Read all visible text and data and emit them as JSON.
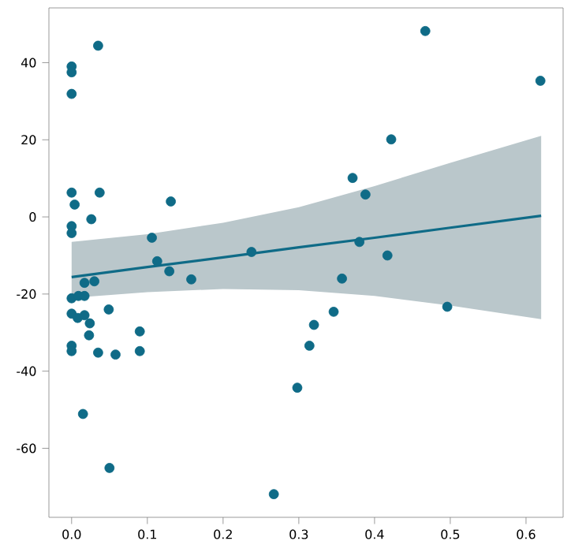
{
  "chart_data": {
    "type": "scatter",
    "marker": "circle",
    "xlim": [
      -0.03,
      0.649
    ],
    "ylim": [
      -77.9,
      54.2
    ],
    "xticks": [
      {
        "value": 0,
        "label": "0.0"
      },
      {
        "value": 0.1,
        "label": "0.1"
      },
      {
        "value": 0.2,
        "label": "0.2"
      },
      {
        "value": 0.3,
        "label": "0.3"
      },
      {
        "value": 0.4,
        "label": "0.4"
      },
      {
        "value": 0.5,
        "label": "0.5"
      },
      {
        "value": 0.6,
        "label": "0.6"
      }
    ],
    "yticks": [
      -60,
      -40,
      -20,
      0,
      20,
      40
    ],
    "series": [
      {
        "type": "line",
        "marker": "none",
        "color": "#0f6b87",
        "x": [
          0,
          0.1,
          0.2,
          0.3,
          0.4,
          0.5,
          0.62
        ],
        "values": [
          -15.6,
          -13.0,
          -10.5,
          -7.9,
          -5.4,
          -2.8,
          0.3
        ],
        "lower": [
          -21,
          -19.5,
          -18.7,
          -19,
          -20.5,
          -23,
          -26.5
        ],
        "upper": [
          -6.5,
          -4.5,
          -1.5,
          2.5,
          8,
          14,
          21
        ]
      },
      {
        "type": "scatter",
        "color": "#0f6b87",
        "x": [
          0,
          0,
          0,
          0.035,
          0,
          0.004,
          0.037,
          0,
          0,
          0.026,
          0.131,
          0.106,
          0.113,
          0.129,
          0.2375,
          0.158,
          0.017,
          0.03,
          0,
          0.009,
          0.017,
          0,
          0.008,
          0.017,
          0.024,
          0.023,
          0.049,
          0,
          0,
          0.035,
          0.058,
          0.09,
          0.09,
          0.015,
          0.05,
          0.267,
          0.467,
          0.619,
          0.422,
          0.371,
          0.388,
          0.38,
          0.417,
          0.357,
          0.346,
          0.32,
          0.314,
          0.298,
          0.496
        ],
        "values": [
          39.0,
          37.5,
          31.9,
          44.4,
          6.3,
          3.2,
          6.3,
          -2.4,
          -4.2,
          -0.6,
          4.0,
          -5.4,
          -11.5,
          -14.1,
          -9.1,
          -16.2,
          -17.1,
          -16.7,
          -21.1,
          -20.5,
          -20.5,
          -25.1,
          -26.2,
          -25.5,
          -27.6,
          -30.7,
          -24.0,
          -33.4,
          -34.8,
          -35.2,
          -35.7,
          -29.7,
          -34.8,
          -51.1,
          -65.1,
          -71.9,
          48.2,
          35.3,
          20.1,
          10.1,
          5.8,
          -6.5,
          -10.0,
          -16.0,
          -24.6,
          -28.0,
          -33.4,
          -44.3,
          -23.3
        ]
      }
    ]
  }
}
